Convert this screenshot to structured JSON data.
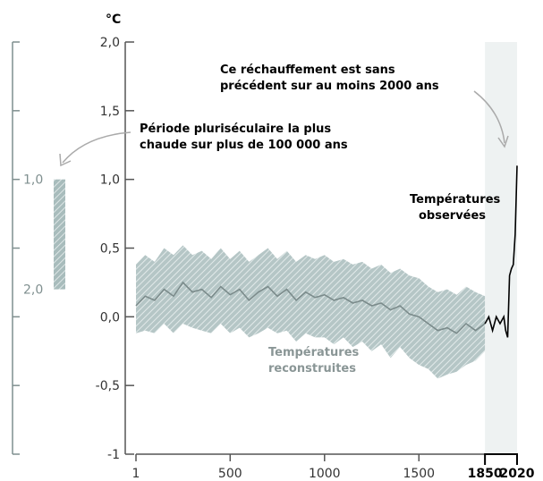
{
  "chart_data": {
    "type": "line",
    "title": "",
    "unit_label": "°C",
    "xlabel": "",
    "ylabel": "",
    "x_tick_labels": [
      "1",
      "500",
      "1000",
      "1500"
    ],
    "x_tick_values": [
      1,
      500,
      1000,
      1500
    ],
    "x_bold_tick_labels": [
      "1850",
      "2020"
    ],
    "x_bold_tick_values": [
      1850,
      2020
    ],
    "xlim": [
      1,
      2020
    ],
    "y_tick_labels": [
      "2,0",
      "1,5",
      "1,0",
      "0,5",
      "0,0",
      "-0,5",
      "-1"
    ],
    "y_tick_values": [
      2.0,
      1.5,
      1.0,
      0.5,
      0.0,
      -0.5,
      -1.0
    ],
    "ylim": [
      -1.0,
      2.0
    ],
    "grid": false,
    "observed_period": [
      1850,
      2020
    ],
    "series": [
      {
        "name": "Températures reconstruites",
        "color": "#7b8b8b",
        "band_color": "#b9c6c6",
        "x": [
          1,
          50,
          100,
          150,
          200,
          250,
          300,
          350,
          400,
          450,
          500,
          550,
          600,
          650,
          700,
          750,
          800,
          850,
          900,
          950,
          1000,
          1050,
          1100,
          1150,
          1200,
          1250,
          1300,
          1350,
          1400,
          1450,
          1500,
          1550,
          1600,
          1650,
          1700,
          1750,
          1800,
          1850
        ],
        "values": [
          0.08,
          0.15,
          0.12,
          0.2,
          0.15,
          0.25,
          0.18,
          0.2,
          0.14,
          0.22,
          0.16,
          0.2,
          0.12,
          0.18,
          0.22,
          0.15,
          0.2,
          0.12,
          0.18,
          0.14,
          0.16,
          0.12,
          0.14,
          0.1,
          0.12,
          0.08,
          0.1,
          0.05,
          0.08,
          0.02,
          0.0,
          -0.05,
          -0.1,
          -0.08,
          -0.12,
          -0.05,
          -0.1,
          -0.05
        ],
        "lower": [
          -0.12,
          -0.1,
          -0.12,
          -0.05,
          -0.12,
          -0.05,
          -0.08,
          -0.1,
          -0.12,
          -0.05,
          -0.12,
          -0.08,
          -0.15,
          -0.12,
          -0.08,
          -0.12,
          -0.1,
          -0.18,
          -0.12,
          -0.15,
          -0.15,
          -0.2,
          -0.15,
          -0.22,
          -0.18,
          -0.25,
          -0.2,
          -0.3,
          -0.22,
          -0.3,
          -0.35,
          -0.38,
          -0.45,
          -0.42,
          -0.4,
          -0.35,
          -0.32,
          -0.25
        ],
        "upper": [
          0.38,
          0.45,
          0.4,
          0.5,
          0.45,
          0.52,
          0.45,
          0.48,
          0.42,
          0.5,
          0.42,
          0.48,
          0.4,
          0.45,
          0.5,
          0.42,
          0.48,
          0.4,
          0.45,
          0.42,
          0.45,
          0.4,
          0.42,
          0.38,
          0.4,
          0.35,
          0.38,
          0.32,
          0.35,
          0.3,
          0.28,
          0.22,
          0.18,
          0.2,
          0.16,
          0.22,
          0.18,
          0.15
        ]
      },
      {
        "name": "Températures observées",
        "color": "#000000",
        "x": [
          1850,
          1870,
          1890,
          1910,
          1930,
          1950,
          1960,
          1970,
          1980,
          1990,
          2000,
          2010,
          2020
        ],
        "values": [
          -0.05,
          0.0,
          -0.1,
          0.0,
          -0.05,
          0.0,
          -0.1,
          -0.15,
          0.3,
          0.35,
          0.38,
          0.6,
          1.1
        ]
      }
    ],
    "annotations": [
      "Ce réchauffement est sans",
      "précédent sur au moins 2000 ans",
      "Période pluriséculaire la plus",
      "chaude sur plus de 100 000 ans"
    ],
    "side_panel": {
      "tick_labels": [
        "1,0",
        "2,0"
      ],
      "bar_range": [
        1.0,
        2.0
      ],
      "bar_color": "#a8bcbc"
    },
    "observed_period_color": "#eef2f2"
  }
}
